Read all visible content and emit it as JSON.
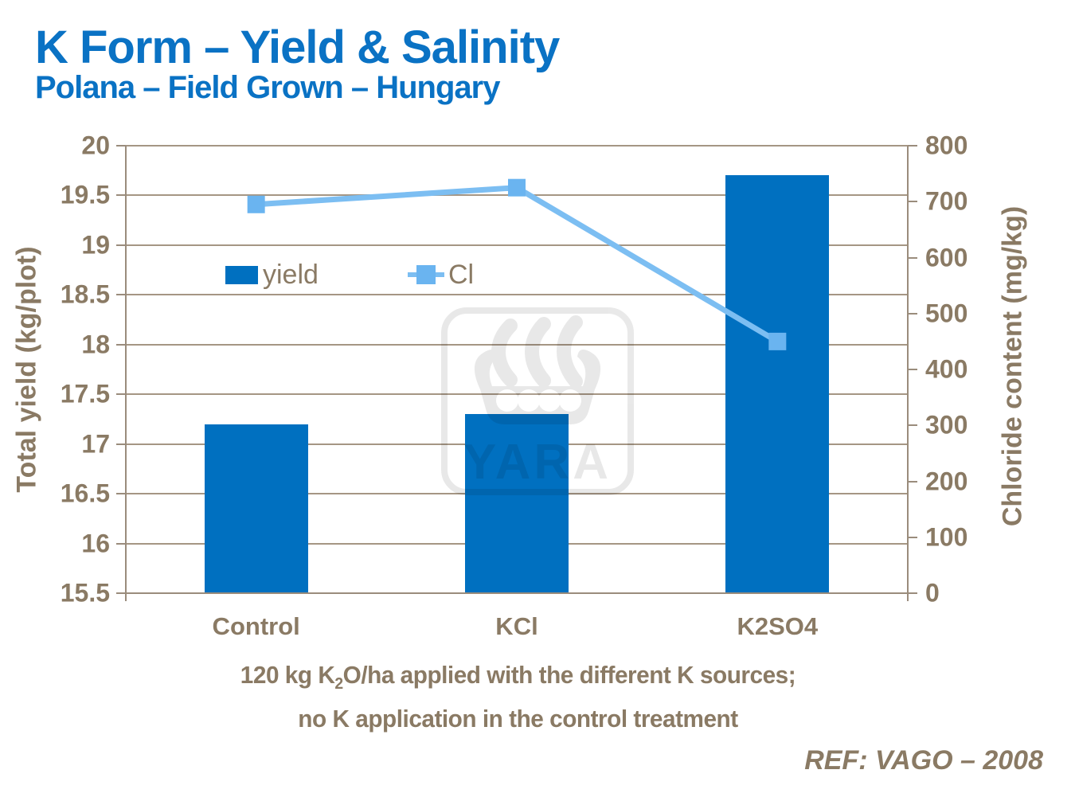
{
  "slide": {
    "title": "K Form – Yield & Salinity",
    "subtitle": "Polana – Field Grown – Hungary",
    "reference": "REF: VAGO – 2008",
    "caption": {
      "line1_pre": "120 kg K",
      "line1_sub": "2",
      "line1_post": "O/ha applied with the different K sources;",
      "line2": "no K application in the control treatment"
    },
    "watermark_text": "YARA"
  },
  "chart_data": {
    "type": "bar+line dual-axis",
    "categories": [
      "Control",
      "KCl",
      "K2SO4"
    ],
    "series": [
      {
        "name": "yield",
        "type": "bar",
        "axis": "left",
        "values": [
          17.2,
          17.3,
          19.7
        ]
      },
      {
        "name": "Cl",
        "type": "line",
        "axis": "right",
        "values": [
          695,
          725,
          450
        ]
      }
    ],
    "left_axis": {
      "label": "Total yield (kg/plot)",
      "min": 15.5,
      "max": 20,
      "step": 0.5,
      "ticks": [
        "15.5",
        "16",
        "16.5",
        "17",
        "17.5",
        "18",
        "18.5",
        "19",
        "19.5",
        "20"
      ]
    },
    "right_axis": {
      "label": "Chloride content (mg/kg)",
      "min": 0,
      "max": 800,
      "step": 100,
      "ticks": [
        "0",
        "100",
        "200",
        "300",
        "400",
        "500",
        "600",
        "700",
        "800"
      ]
    },
    "legend": [
      {
        "label": "yield",
        "marker": "bar-swatch"
      },
      {
        "label": "Cl",
        "marker": "line-square-swatch"
      }
    ],
    "grid": true,
    "legend_position": "inside-top-left",
    "colors": {
      "bar": "#0070c0",
      "line": "#7cbef2",
      "marker": "#6ab4f0",
      "title_blue": "#0a72c4",
      "axis_text": "#8a7a64",
      "gridline": "#a59684",
      "axis_line": "#9a8c7c"
    }
  }
}
